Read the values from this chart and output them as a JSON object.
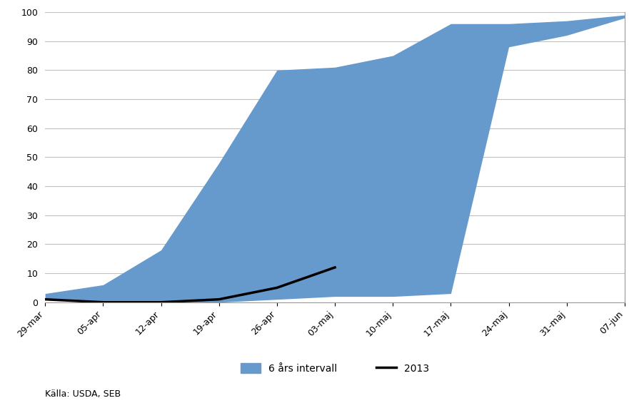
{
  "source": "Källa: USDA, SEB",
  "x_labels": [
    "29-mar",
    "05-apr",
    "12-apr",
    "19-apr",
    "26-apr",
    "03-maj",
    "10-maj",
    "17-maj",
    "24-maj",
    "31-maj",
    "07-jun"
  ],
  "x_indices": [
    0,
    1,
    2,
    3,
    4,
    5,
    6,
    7,
    8,
    9,
    10
  ],
  "band_upper": [
    3,
    6,
    18,
    48,
    80,
    81,
    85,
    96,
    96,
    97,
    99
  ],
  "band_lower": [
    1,
    0,
    0,
    0,
    1,
    2,
    2,
    3,
    88,
    92,
    98
  ],
  "line_2013_x": [
    0,
    1,
    2,
    3,
    4,
    5
  ],
  "line_2013_y": [
    1,
    0,
    0,
    1,
    5,
    12
  ],
  "band_color": "#6699CC",
  "band_alpha": 1.0,
  "line_color": "#000000",
  "line_width": 2.5,
  "ylim": [
    0,
    100
  ],
  "yticks": [
    0,
    10,
    20,
    30,
    40,
    50,
    60,
    70,
    80,
    90,
    100
  ],
  "legend_band_label": "6 års intervall",
  "legend_line_label": "2013",
  "background_color": "#ffffff",
  "grid_color": "#c0c0c0"
}
